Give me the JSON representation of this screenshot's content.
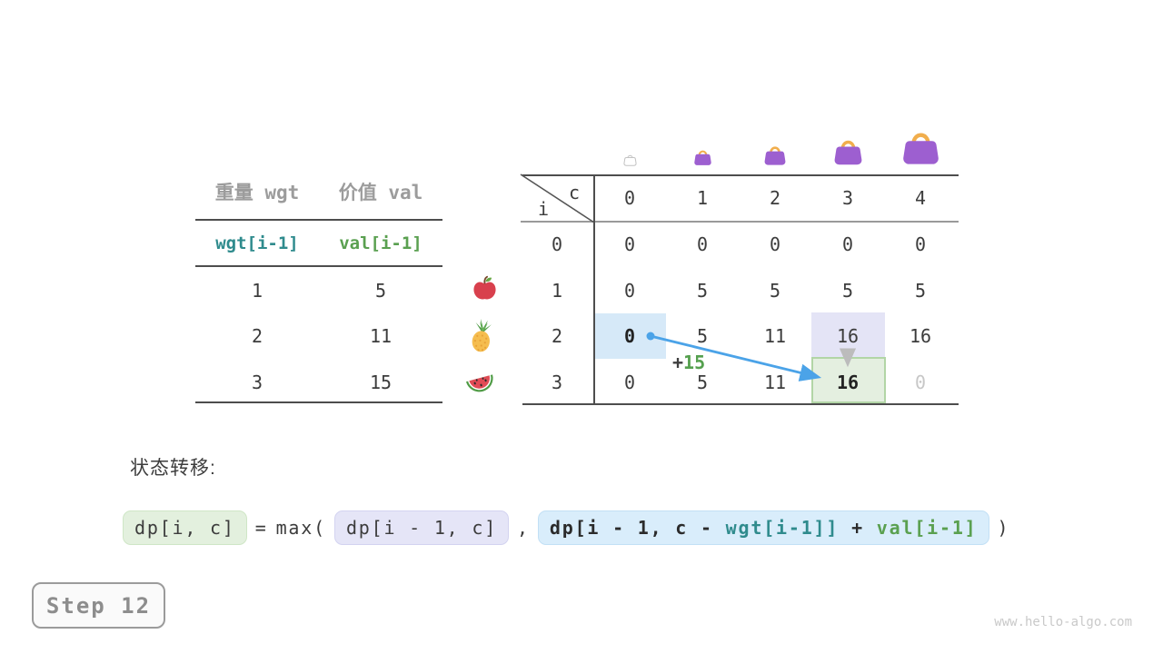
{
  "page": {
    "step_label": "Step 12",
    "watermark": "www.hello-algo.com"
  },
  "items_table": {
    "headers": {
      "weight": "重量 wgt",
      "value": "价值 val"
    },
    "var_row": {
      "wgt": "wgt[i-1]",
      "val": "val[i-1]"
    },
    "rows": [
      {
        "wgt": "1",
        "val": "5",
        "icon": "apple-icon"
      },
      {
        "wgt": "2",
        "val": "11",
        "icon": "pineapple-icon"
      },
      {
        "wgt": "3",
        "val": "15",
        "icon": "watermelon-icon"
      }
    ]
  },
  "dp_table": {
    "corner": {
      "row_var": "i",
      "col_var": "c"
    },
    "col_headers": [
      "0",
      "1",
      "2",
      "3",
      "4"
    ],
    "row_headers": [
      "0",
      "1",
      "2",
      "3"
    ],
    "cells": [
      [
        "0",
        "0",
        "0",
        "0",
        "0"
      ],
      [
        "0",
        "5",
        "5",
        "5",
        "5"
      ],
      [
        "0",
        "5",
        "11",
        "16",
        "16"
      ],
      [
        "0",
        "5",
        "11",
        "16",
        "0"
      ]
    ],
    "highlights": [
      {
        "row": 2,
        "col": 0,
        "style": "source-blue",
        "bold": true
      },
      {
        "row": 2,
        "col": 3,
        "style": "option-lavender",
        "bold": false
      },
      {
        "row": 3,
        "col": 3,
        "style": "target-green",
        "bold": true
      },
      {
        "row": 3,
        "col": 4,
        "style": "ghost-value",
        "bold": false
      }
    ],
    "capacity_icons": [
      {
        "name": "bag-icon-ghost",
        "ghost": true
      },
      {
        "name": "bag-icon-1",
        "ghost": false
      },
      {
        "name": "bag-icon-2",
        "ghost": false
      },
      {
        "name": "bag-icon-3",
        "ghost": false
      },
      {
        "name": "bag-icon-4",
        "ghost": false
      }
    ],
    "annotation": {
      "plus": "+",
      "value": "15"
    }
  },
  "transition": {
    "title": "状态转移:",
    "lhs": "dp[i, c]",
    "eq": "=",
    "max_open": "max(",
    "option1": "dp[i - 1, c]",
    "comma": ",",
    "option2": {
      "prefix": "dp[i - 1, c - ",
      "wgt": "wgt[i-1]]",
      "plus": " + ",
      "val": "val[i-1]"
    },
    "close": ")"
  },
  "colors": {
    "accent_blue": "#4ba3e8",
    "teal": "#2f8b8d",
    "green": "#5aa050",
    "highlight_blue": "#d6e9f8",
    "highlight_lavender": "#e4e4f6",
    "highlight_green": "#e4efe0",
    "bag_purple": "#9d5fd0",
    "bag_handle": "#f1ae4d",
    "gray_text": "#9c9c9c"
  }
}
